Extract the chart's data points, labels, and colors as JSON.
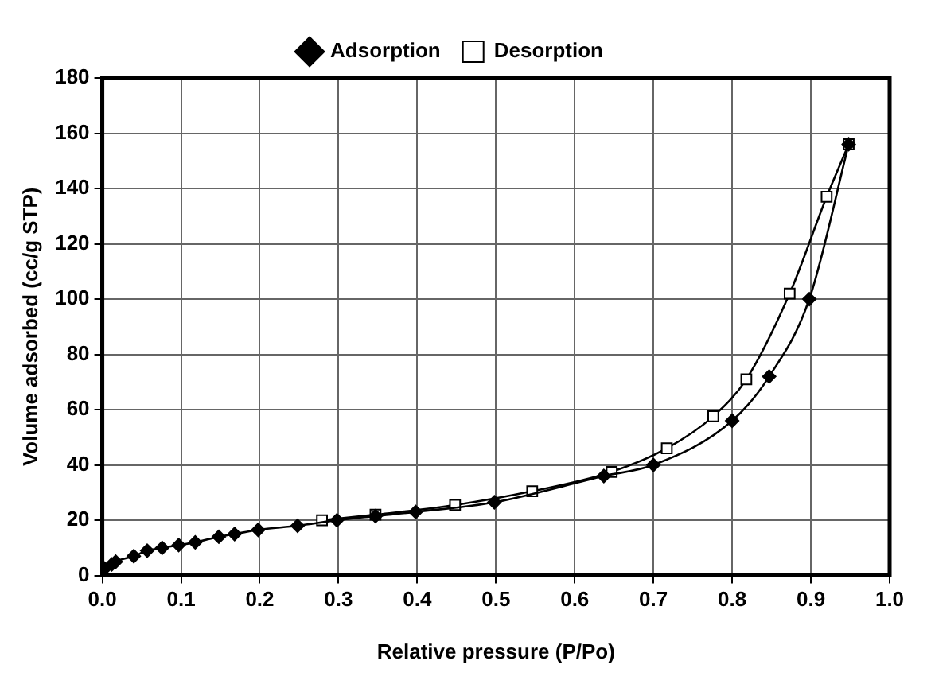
{
  "chart_data": {
    "type": "line",
    "xlabel": "Relative pressure (P/Po)",
    "ylabel": "Volume adsorbed (cc/g STP)",
    "xlim": [
      0,
      1
    ],
    "xticks": [
      {
        "value": 0,
        "label": "0.0"
      },
      0.1,
      0.2,
      0.3,
      0.4,
      0.5,
      0.6,
      0.7,
      0.8,
      0.9,
      {
        "value": 1,
        "label": "1.0"
      }
    ],
    "ylim": [
      0,
      180
    ],
    "yticks": [
      0,
      20,
      40,
      60,
      80,
      100,
      120,
      140,
      160,
      180
    ],
    "grid": true,
    "legend": "top",
    "line_style": "solid",
    "series": [
      {
        "name": "Adsorption",
        "color": "#000000",
        "marker": "diamond",
        "x": [
          0.003,
          0.012,
          0.017,
          0.04,
          0.057,
          0.076,
          0.097,
          0.118,
          0.148,
          0.168,
          0.198,
          0.248,
          0.298,
          0.347,
          0.398,
          0.498,
          0.637,
          0.7,
          0.8,
          0.847,
          0.898,
          0.948
        ],
        "values": [
          2.5,
          4,
          5,
          7,
          9,
          10,
          11,
          12,
          14,
          15,
          16.5,
          18,
          20,
          21.5,
          23,
          26.5,
          36,
          40,
          56,
          72,
          100,
          156
        ]
      },
      {
        "name": "Desorption",
        "color": "#000000",
        "marker": "square",
        "x": [
          0.279,
          0.347,
          0.448,
          0.546,
          0.647,
          0.717,
          0.776,
          0.818,
          0.873,
          0.92,
          0.948
        ],
        "values": [
          20,
          22,
          25.5,
          30.5,
          37.5,
          46,
          57.6,
          71,
          102,
          137,
          156
        ]
      }
    ]
  }
}
